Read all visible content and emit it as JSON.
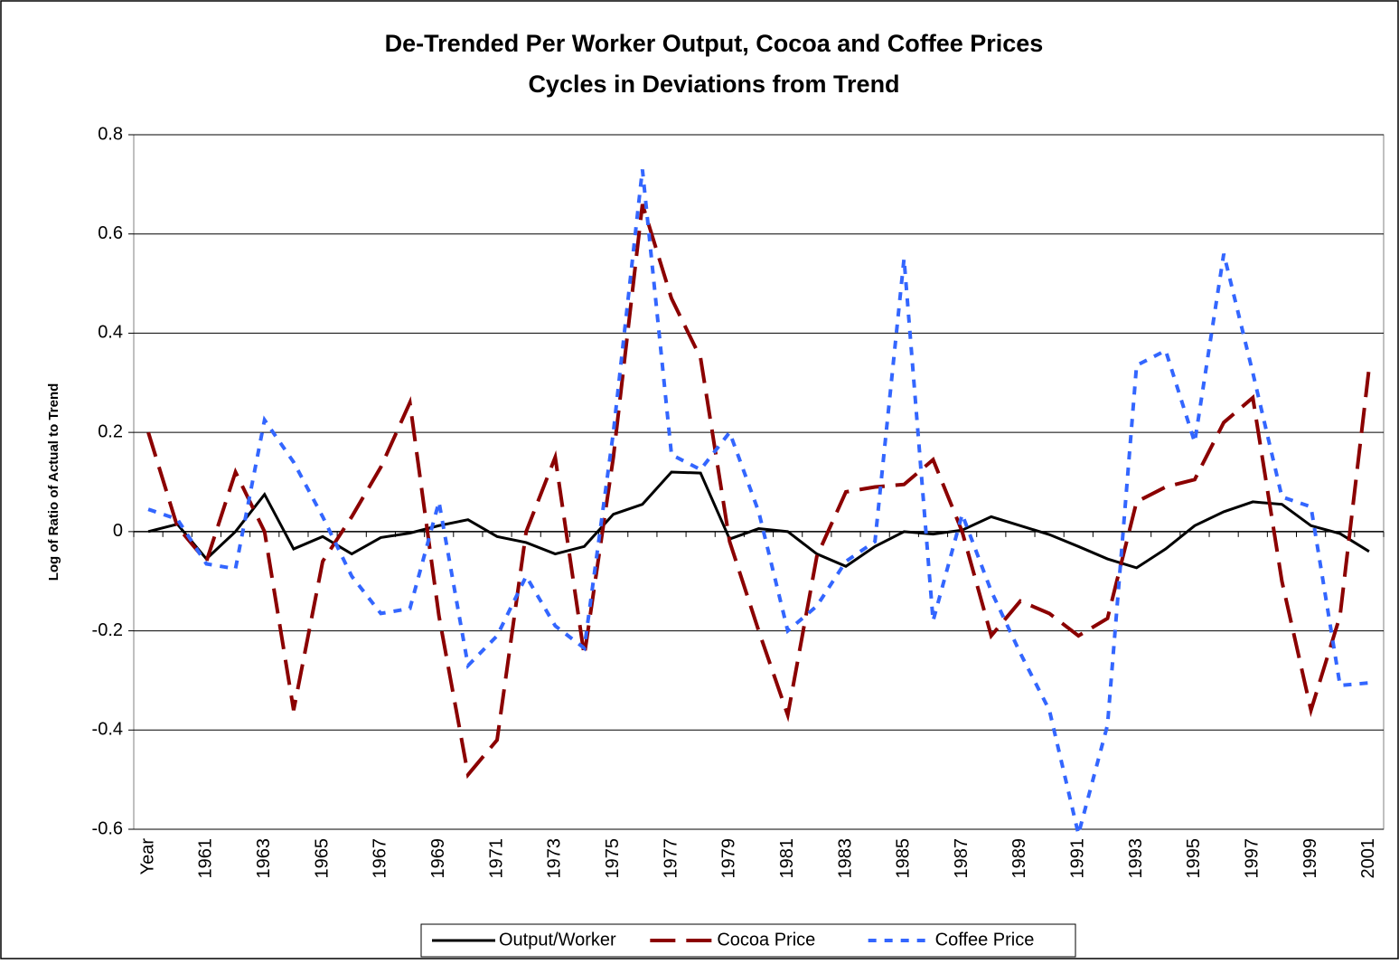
{
  "chart_data": {
    "type": "line",
    "title": "De-Trended Per Worker Output, Cocoa and Coffee Prices",
    "subtitle": "Cycles in Deviations from Trend",
    "y_label": "Log of Ratio of Actual to Trend",
    "categories": [
      "Year",
      null,
      "1961",
      null,
      "1963",
      null,
      "1965",
      null,
      "1967",
      null,
      "1969",
      null,
      "1971",
      null,
      "1973",
      null,
      "1975",
      null,
      "1977",
      null,
      "1979",
      null,
      "1981",
      null,
      "1983",
      null,
      "1985",
      null,
      "1987",
      null,
      "1989",
      null,
      "1991",
      null,
      "1993",
      null,
      "1995",
      null,
      "1997",
      null,
      "1999",
      null,
      "2001"
    ],
    "series": [
      {
        "name": "Output/Worker",
        "color": "#000000",
        "dash": "solid",
        "values": [
          0,
          0.015,
          -0.055,
          0.0,
          0.075,
          -0.035,
          -0.01,
          -0.045,
          -0.012,
          -0.003,
          0.012,
          0.024,
          -0.01,
          -0.022,
          -0.045,
          -0.03,
          0.035,
          0.055,
          0.12,
          0.118,
          -0.015,
          0.006,
          0.0,
          -0.045,
          -0.07,
          -0.03,
          0.0,
          -0.005,
          0.003,
          0.03,
          0.012,
          -0.006,
          -0.03,
          -0.055,
          -0.073,
          -0.035,
          0.012,
          0.04,
          0.06,
          0.055,
          0.012,
          -0.004,
          -0.04
        ]
      },
      {
        "name": "Cocoa Price",
        "color": "#8b0000",
        "dash": "long",
        "values": [
          0.2,
          0.01,
          -0.06,
          0.12,
          0.0,
          -0.36,
          -0.06,
          0.03,
          0.13,
          0.26,
          -0.17,
          -0.49,
          -0.42,
          0.0,
          0.15,
          -0.25,
          0.15,
          0.66,
          0.47,
          0.35,
          -0.02,
          -0.2,
          -0.37,
          -0.05,
          0.08,
          0.09,
          0.095,
          0.145,
          0.0,
          -0.21,
          -0.14,
          -0.165,
          -0.21,
          -0.175,
          0.06,
          0.09,
          0.105,
          0.22,
          0.27,
          -0.1,
          -0.36,
          -0.17,
          0.33
        ]
      },
      {
        "name": "Coffee Price",
        "color": "#3366ff",
        "dash": "dot",
        "values": [
          0.045,
          0.025,
          -0.065,
          -0.075,
          0.225,
          0.14,
          0.03,
          -0.09,
          -0.165,
          -0.155,
          0.06,
          -0.27,
          -0.21,
          -0.09,
          -0.19,
          -0.235,
          0.2,
          0.73,
          0.155,
          0.125,
          0.2,
          0.04,
          -0.2,
          -0.15,
          -0.06,
          -0.02,
          0.55,
          -0.18,
          0.035,
          -0.12,
          -0.245,
          -0.36,
          -0.61,
          -0.39,
          0.335,
          0.365,
          0.18,
          0.56,
          0.32,
          0.07,
          0.05,
          -0.31,
          -0.305
        ]
      }
    ],
    "ylim": [
      -0.6,
      0.8
    ],
    "yticks": [
      -0.6,
      -0.4,
      -0.2,
      0,
      0.2,
      0.4,
      0.6,
      0.8
    ],
    "grid": true,
    "legend": "bottom"
  }
}
